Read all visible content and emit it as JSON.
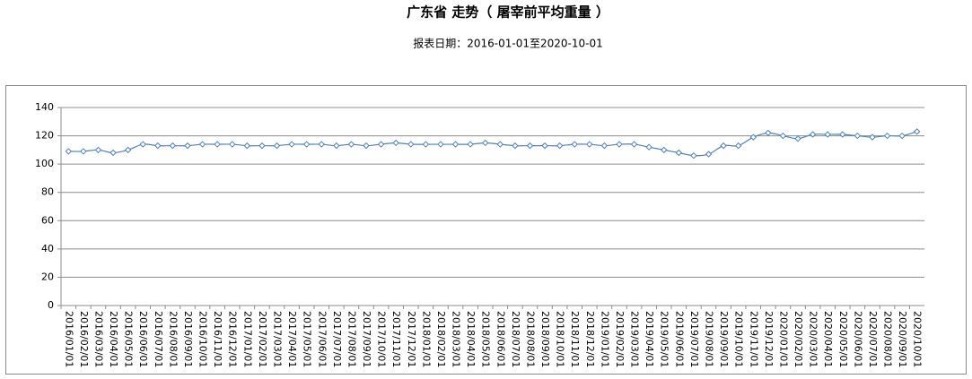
{
  "chart_data": {
    "type": "line",
    "title": "广东省 走势（ 屠宰前平均重量 ）",
    "subtitle": "报表日期：2016-01-01至2020-10-01",
    "categories": [
      "2016/01/01",
      "2016/02/01",
      "2016/03/01",
      "2016/04/01",
      "2016/05/01",
      "2016/06/01",
      "2016/07/01",
      "2016/08/01",
      "2016/09/01",
      "2016/10/01",
      "2016/11/01",
      "2016/12/01",
      "2017/01/01",
      "2017/02/01",
      "2017/03/01",
      "2017/04/01",
      "2017/05/01",
      "2017/06/01",
      "2017/07/01",
      "2017/08/01",
      "2017/09/01",
      "2017/10/01",
      "2017/11/01",
      "2017/12/01",
      "2018/01/01",
      "2018/02/01",
      "2018/03/01",
      "2018/04/01",
      "2018/05/01",
      "2018/06/01",
      "2018/07/01",
      "2018/08/01",
      "2018/09/01",
      "2018/10/01",
      "2018/11/01",
      "2018/12/01",
      "2019/01/01",
      "2019/02/01",
      "2019/03/01",
      "2019/04/01",
      "2019/05/01",
      "2019/06/01",
      "2019/07/01",
      "2019/08/01",
      "2019/09/01",
      "2019/10/01",
      "2019/11/01",
      "2019/12/01",
      "2020/01/01",
      "2020/02/01",
      "2020/03/01",
      "2020/04/01",
      "2020/05/01",
      "2020/06/01",
      "2020/07/01",
      "2020/08/01",
      "2020/09/01",
      "2020/10/01"
    ],
    "values": [
      109,
      109,
      110,
      108,
      110,
      114,
      113,
      113,
      113,
      114,
      114,
      114,
      113,
      113,
      113,
      114,
      114,
      114,
      113,
      114,
      113,
      114,
      115,
      114,
      114,
      114,
      114,
      114,
      115,
      114,
      113,
      113,
      113,
      113,
      114,
      114,
      113,
      114,
      114,
      112,
      110,
      108,
      106,
      107,
      113,
      113,
      119,
      122,
      120,
      118,
      121,
      121,
      121,
      120,
      119,
      120,
      120,
      123
    ],
    "color": "#4f81bd",
    "ylim": [
      0,
      140
    ],
    "yticks": [
      0,
      20,
      40,
      60,
      80,
      100,
      120,
      140
    ],
    "grid": true
  }
}
